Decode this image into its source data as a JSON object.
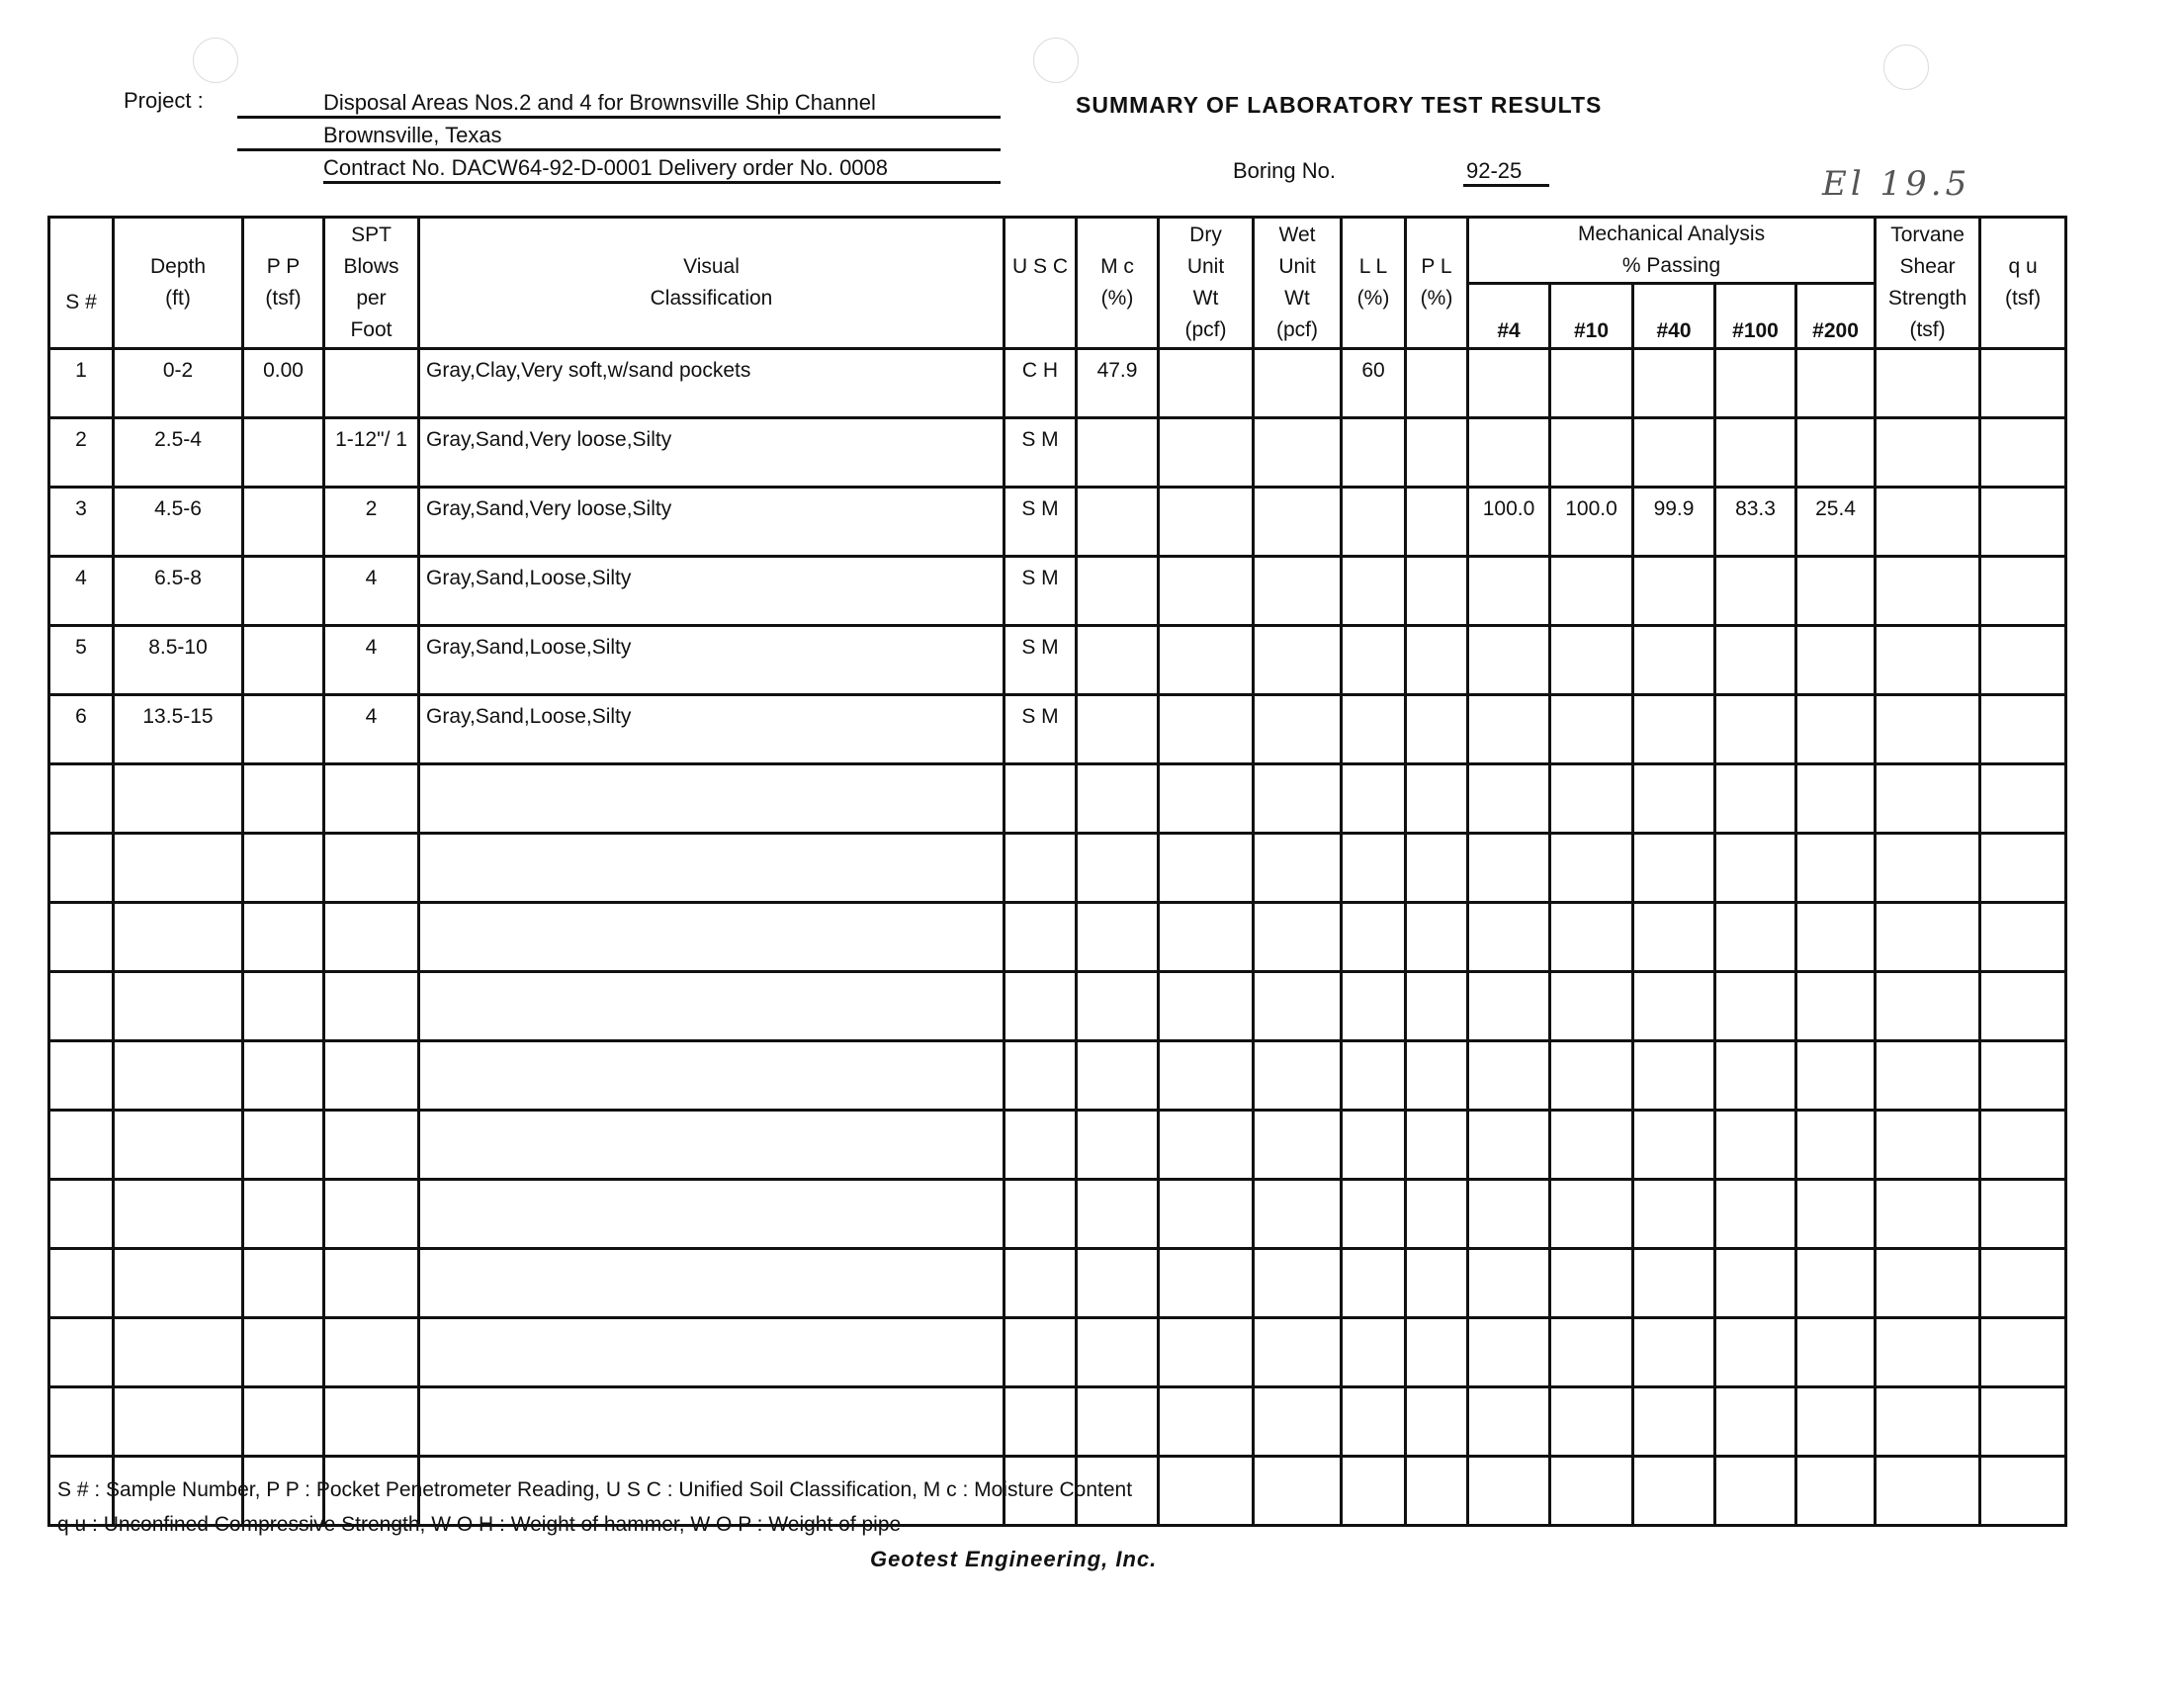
{
  "header": {
    "project_label": "Project :",
    "project_line1": "Disposal Areas Nos.2 and 4 for Brownsville Ship Channel",
    "project_line2": "Brownsville,  Texas",
    "project_line3": "Contract No. DACW64-92-D-0001   Delivery order No. 0008",
    "title": "SUMMARY  OF  LABORATORY  TEST  RESULTS",
    "boring_label": "Boring No.",
    "boring_no": "92-25",
    "handwritten_note": "El 19.5"
  },
  "table": {
    "columns": {
      "s_no": "S #",
      "depth": [
        "Depth",
        "(ft)"
      ],
      "pp": [
        "P P",
        "(tsf)"
      ],
      "spt": [
        "SPT",
        "Blows",
        "per",
        "Foot"
      ],
      "visual": [
        "Visual",
        "Classification"
      ],
      "usc": "U S C",
      "mc": [
        "M c",
        "(%)"
      ],
      "dry": [
        "Dry",
        "Unit",
        "Wt",
        "(pcf)"
      ],
      "wet": [
        "Wet",
        "Unit",
        "Wt",
        "(pcf)"
      ],
      "ll": [
        "L L",
        "(%)"
      ],
      "pl": [
        "P L",
        "(%)"
      ],
      "mech": [
        "Mechanical Analysis",
        "% Passing"
      ],
      "sieves": [
        "#4",
        "#10",
        "#40",
        "#100",
        "#200"
      ],
      "torvane": [
        "Torvane",
        "Shear",
        "Strength",
        "(tsf)"
      ],
      "qu": [
        "q u",
        "(tsf)"
      ]
    },
    "rows": [
      [
        "1",
        "0-2",
        "0.00",
        "",
        "Gray,Clay,Very  soft,w/sand  pockets",
        "C H",
        "47.9",
        "",
        "",
        "60",
        "",
        "",
        "",
        "",
        "",
        "",
        "",
        ""
      ],
      [
        "2",
        "2.5-4",
        "",
        "1-12\"/ 1",
        "Gray,Sand,Very  loose,Silty",
        "S M",
        "",
        "",
        "",
        "",
        "",
        "",
        "",
        "",
        "",
        "",
        "",
        ""
      ],
      [
        "3",
        "4.5-6",
        "",
        "2",
        "Gray,Sand,Very  loose,Silty",
        "S M",
        "",
        "",
        "",
        "",
        "",
        "100.0",
        "100.0",
        "99.9",
        "83.3",
        "25.4",
        "",
        ""
      ],
      [
        "4",
        "6.5-8",
        "",
        "4",
        "Gray,Sand,Loose,Silty",
        "S M",
        "",
        "",
        "",
        "",
        "",
        "",
        "",
        "",
        "",
        "",
        "",
        ""
      ],
      [
        "5",
        "8.5-10",
        "",
        "4",
        "Gray,Sand,Loose,Silty",
        "S M",
        "",
        "",
        "",
        "",
        "",
        "",
        "",
        "",
        "",
        "",
        "",
        ""
      ],
      [
        "6",
        "13.5-15",
        "",
        "4",
        "Gray,Sand,Loose,Silty",
        "S M",
        "",
        "",
        "",
        "",
        "",
        "",
        "",
        "",
        "",
        "",
        "",
        ""
      ],
      [
        "",
        "",
        "",
        "",
        "",
        "",
        "",
        "",
        "",
        "",
        "",
        "",
        "",
        "",
        "",
        "",
        "",
        ""
      ],
      [
        "",
        "",
        "",
        "",
        "",
        "",
        "",
        "",
        "",
        "",
        "",
        "",
        "",
        "",
        "",
        "",
        "",
        ""
      ],
      [
        "",
        "",
        "",
        "",
        "",
        "",
        "",
        "",
        "",
        "",
        "",
        "",
        "",
        "",
        "",
        "",
        "",
        ""
      ],
      [
        "",
        "",
        "",
        "",
        "",
        "",
        "",
        "",
        "",
        "",
        "",
        "",
        "",
        "",
        "",
        "",
        "",
        ""
      ],
      [
        "",
        "",
        "",
        "",
        "",
        "",
        "",
        "",
        "",
        "",
        "",
        "",
        "",
        "",
        "",
        "",
        "",
        ""
      ],
      [
        "",
        "",
        "",
        "",
        "",
        "",
        "",
        "",
        "",
        "",
        "",
        "",
        "",
        "",
        "",
        "",
        "",
        ""
      ],
      [
        "",
        "",
        "",
        "",
        "",
        "",
        "",
        "",
        "",
        "",
        "",
        "",
        "",
        "",
        "",
        "",
        "",
        ""
      ],
      [
        "",
        "",
        "",
        "",
        "",
        "",
        "",
        "",
        "",
        "",
        "",
        "",
        "",
        "",
        "",
        "",
        "",
        ""
      ],
      [
        "",
        "",
        "",
        "",
        "",
        "",
        "",
        "",
        "",
        "",
        "",
        "",
        "",
        "",
        "",
        "",
        "",
        ""
      ],
      [
        "",
        "",
        "",
        "",
        "",
        "",
        "",
        "",
        "",
        "",
        "",
        "",
        "",
        "",
        "",
        "",
        "",
        ""
      ],
      [
        "",
        "",
        "",
        "",
        "",
        "",
        "",
        "",
        "",
        "",
        "",
        "",
        "",
        "",
        "",
        "",
        "",
        ""
      ]
    ]
  },
  "footer": {
    "legend_line1": "S # : Sample Number, P P : Pocket Penetrometer Reading, U S C : Unified Soil Classification, M c : Moisture Content",
    "legend_line2": "q u : Unconfined Compressive Strength, W O H : Weight of hammer, W O P : Weight of pipe",
    "company": "Geotest  Engineering,  Inc."
  }
}
